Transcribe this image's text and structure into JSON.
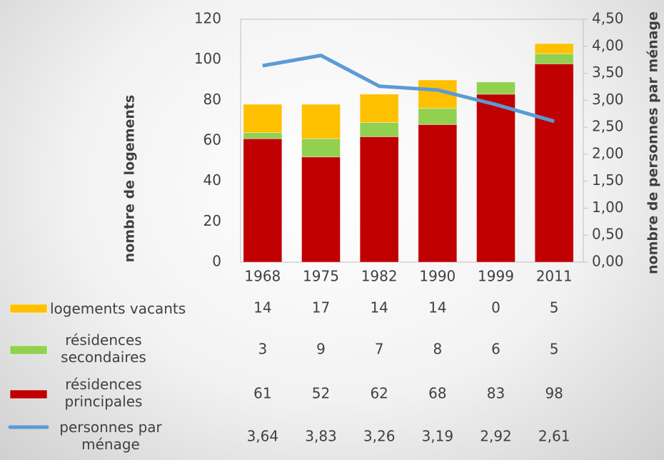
{
  "chart_data": {
    "type": "bar",
    "stacked": true,
    "categories": [
      "1968",
      "1975",
      "1982",
      "1990",
      "1999",
      "2011"
    ],
    "ylabel": "nombre de logements",
    "y2label": "nombre de personnes par ménage",
    "ylim": [
      0,
      120
    ],
    "yticks": [
      0,
      20,
      40,
      60,
      80,
      100,
      120
    ],
    "y2lim": [
      0,
      4.5
    ],
    "y2ticks": [
      {
        "value": 0,
        "label": "0,00"
      },
      {
        "value": 0.5,
        "label": "0,50"
      },
      {
        "value": 1,
        "label": "1,00"
      },
      {
        "value": 1.5,
        "label": "1,50"
      },
      {
        "value": 2,
        "label": "2,00"
      },
      {
        "value": 2.5,
        "label": "2,50"
      },
      {
        "value": 3,
        "label": "3,00"
      },
      {
        "value": 3.5,
        "label": "3,50"
      },
      {
        "value": 4,
        "label": "4,00"
      },
      {
        "value": 4.5,
        "label": "4,50"
      }
    ],
    "series": [
      {
        "name": "logements vacants",
        "color": "#ffc000",
        "values": [
          14,
          17,
          14,
          14,
          0,
          5
        ]
      },
      {
        "name": "résidences secondaires",
        "color": "#92d050",
        "values": [
          3,
          9,
          7,
          8,
          6,
          5
        ]
      },
      {
        "name": "résidences principales",
        "color": "#c00000",
        "values": [
          61,
          52,
          62,
          68,
          83,
          98
        ]
      },
      {
        "name": "personnes par ménage",
        "type": "line",
        "axis": "y2",
        "color": "#5b9bd5",
        "values": [
          3.64,
          3.83,
          3.26,
          3.19,
          2.92,
          2.61
        ],
        "value_labels": [
          "3,64",
          "3,83",
          "3,26",
          "3,19",
          "2,92",
          "2,61"
        ]
      }
    ]
  }
}
